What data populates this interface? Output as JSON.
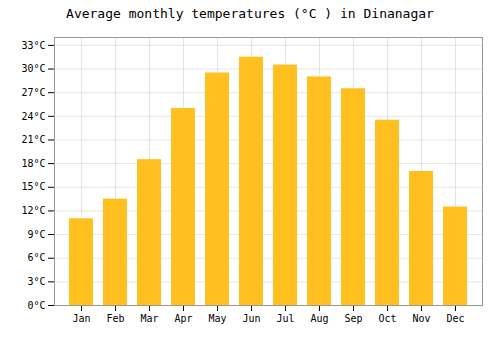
{
  "chart_data": {
    "type": "bar",
    "title": "Average monthly temperatures (°C ) in Dinanagar",
    "categories": [
      "Jan",
      "Feb",
      "Mar",
      "Apr",
      "May",
      "Jun",
      "Jul",
      "Aug",
      "Sep",
      "Oct",
      "Nov",
      "Dec"
    ],
    "values": [
      11,
      13.5,
      18.5,
      25,
      29.5,
      31.5,
      30.5,
      29,
      27.5,
      23.5,
      17,
      12.5
    ],
    "color": "#FFC020",
    "ylim": [
      0,
      34
    ],
    "yticks": [
      {
        "value": 0,
        "label": "0°C"
      },
      {
        "value": 3,
        "label": "3°C"
      },
      {
        "value": 6,
        "label": "6°C"
      },
      {
        "value": 9,
        "label": "9°C"
      },
      {
        "value": 12,
        "label": "12°C"
      },
      {
        "value": 15,
        "label": "15°C"
      },
      {
        "value": 18,
        "label": "18°C"
      },
      {
        "value": 21,
        "label": "21°C"
      },
      {
        "value": 24,
        "label": "24°C"
      },
      {
        "value": 27,
        "label": "27°C"
      },
      {
        "value": 30,
        "label": "30°C"
      },
      {
        "value": 33,
        "label": "33°C"
      }
    ],
    "grid": true
  }
}
